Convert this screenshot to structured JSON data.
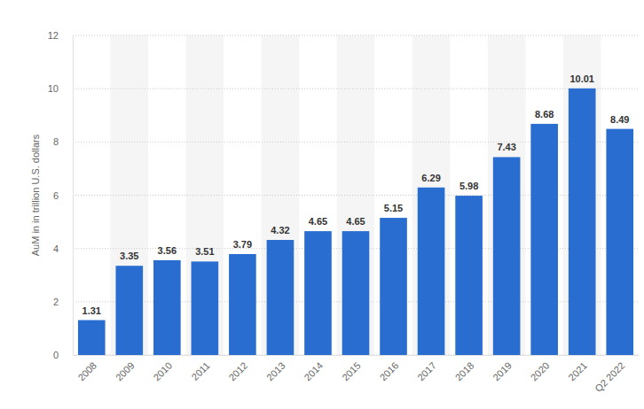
{
  "chart_data": {
    "type": "bar",
    "y_label": "AuM in in trillion U.S. dollars",
    "categories": [
      "2008",
      "2009",
      "2010",
      "2011",
      "2012",
      "2013",
      "2014",
      "2015",
      "2016",
      "2017",
      "2018",
      "2019",
      "2020",
      "2021",
      "Q2 2022"
    ],
    "values": [
      1.31,
      3.35,
      3.56,
      3.51,
      3.79,
      4.32,
      4.65,
      4.65,
      5.15,
      6.29,
      5.98,
      7.43,
      8.68,
      10.01,
      8.49
    ],
    "color": "#2a6dd0",
    "ylim": [
      0,
      12
    ],
    "yticks": [
      0,
      2,
      4,
      6,
      8,
      10,
      12
    ],
    "grid": true,
    "data_labels": true
  }
}
